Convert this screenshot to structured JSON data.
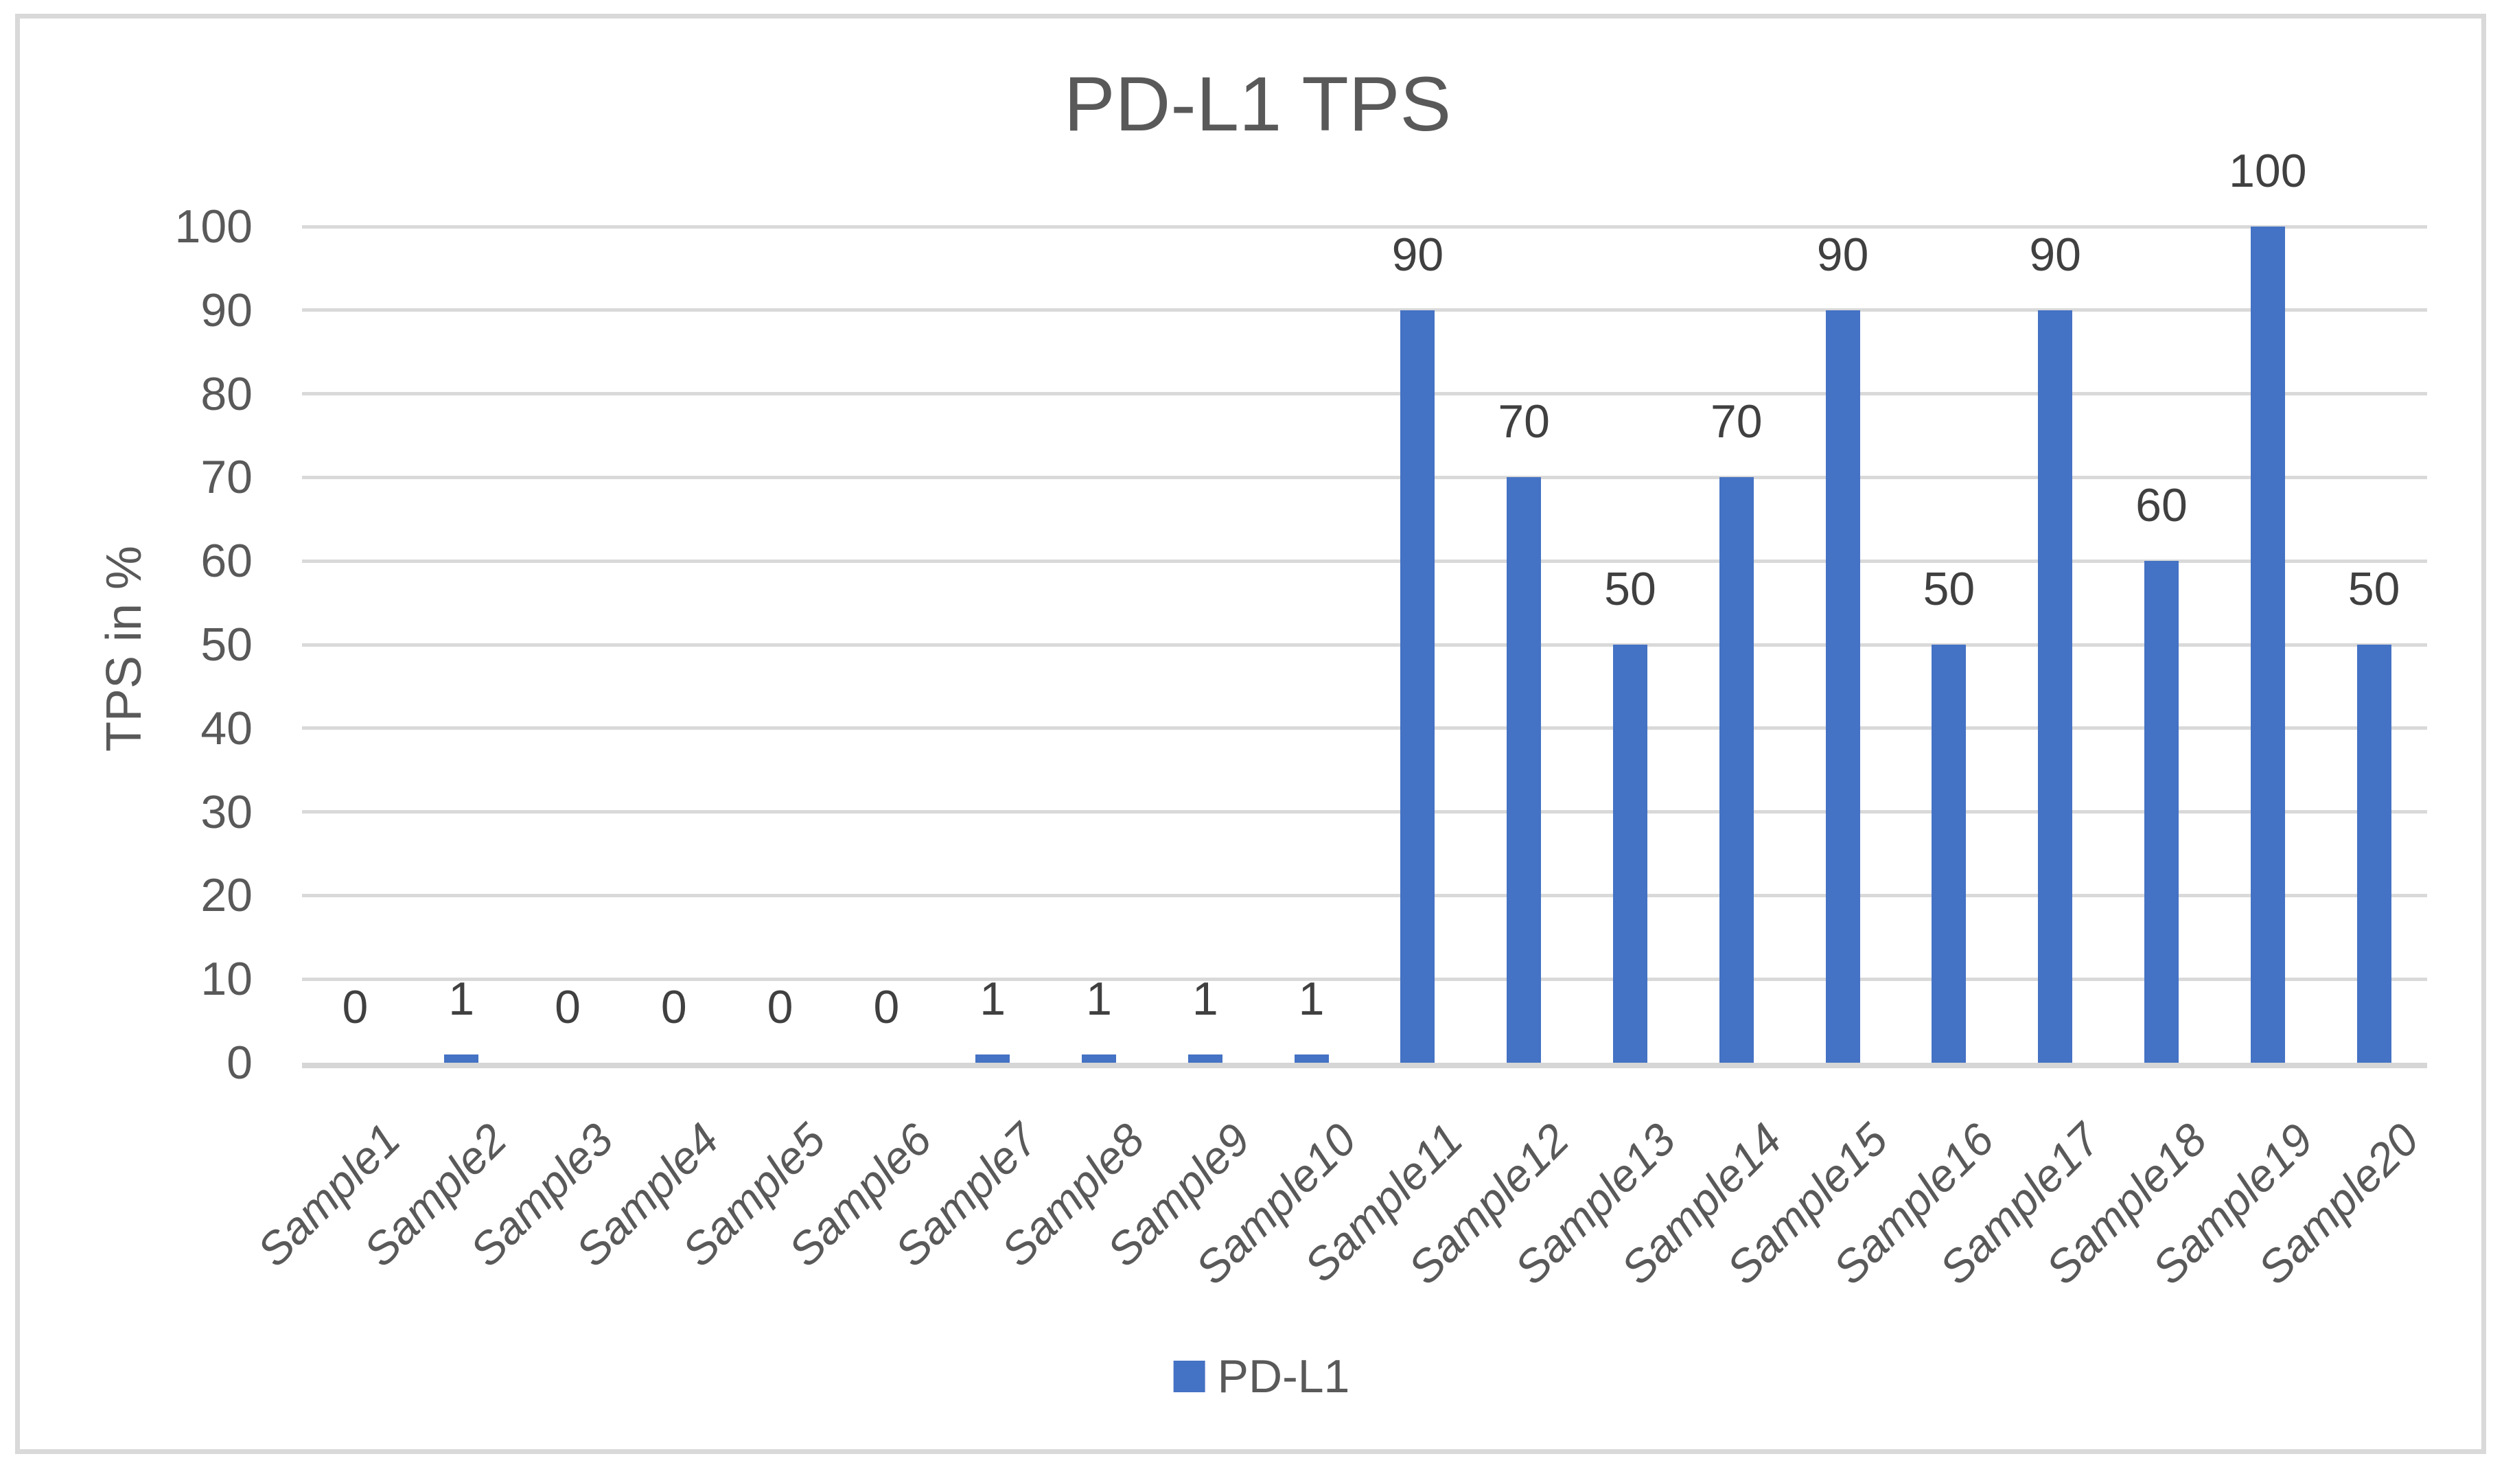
{
  "chart_data": {
    "type": "bar",
    "title": "PD-L1 TPS",
    "ylabel": "TPS in %",
    "xlabel": "",
    "categories": [
      "Sample1",
      "Sample2",
      "Sample3",
      "Sample4",
      "Sample5",
      "Sample6",
      "Sample7",
      "Sample8",
      "Sample9",
      "Sample10",
      "Sample11",
      "Sample12",
      "Sample13",
      "Sample14",
      "Sample15",
      "Sample16",
      "Sample17",
      "Sample18",
      "Sample19",
      "Sample20"
    ],
    "series": [
      {
        "name": "PD-L1",
        "values": [
          0,
          1,
          0,
          0,
          0,
          0,
          1,
          1,
          1,
          1,
          90,
          70,
          50,
          70,
          90,
          50,
          90,
          60,
          100,
          50
        ]
      }
    ],
    "data_labels": [
      0,
      1,
      0,
      0,
      0,
      0,
      1,
      1,
      1,
      1,
      90,
      70,
      50,
      70,
      90,
      50,
      90,
      60,
      100,
      50
    ],
    "ylim": [
      0,
      100
    ],
    "ytick_step": 10,
    "yticks": [
      0,
      10,
      20,
      30,
      40,
      50,
      60,
      70,
      80,
      90,
      100
    ],
    "grid": true,
    "legend_position": "bottom",
    "colors": {
      "bar": "#4472C4",
      "gridline": "#D9D9D9",
      "axis_line": "#D6D6D6",
      "title_text": "#595959",
      "tick_text": "#595959",
      "data_label_text": "#404040",
      "chart_border": "#D9D9D9",
      "background": "#FFFFFF"
    }
  }
}
